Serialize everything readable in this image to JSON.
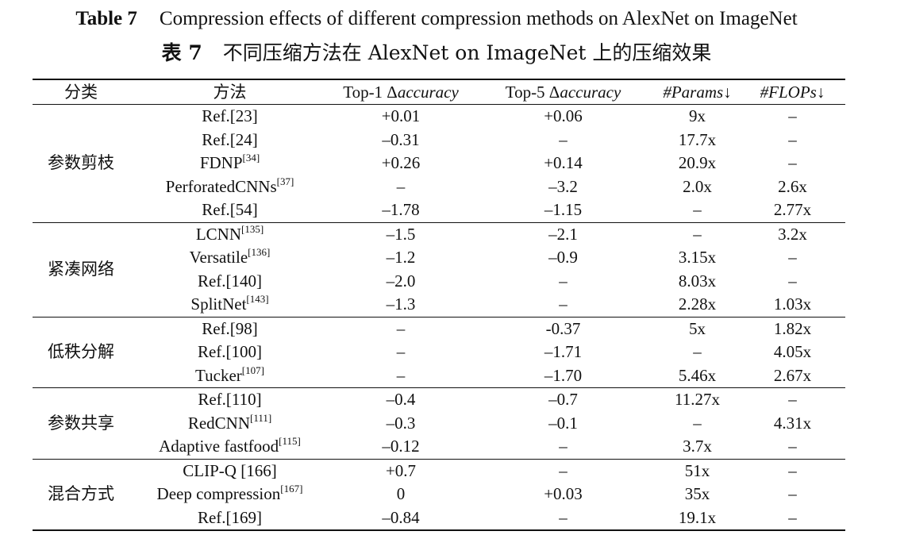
{
  "caption": {
    "en_label": "Table 7",
    "en_text": "Compression effects of different compression methods on AlexNet on ImageNet",
    "zh_label": "表 7",
    "zh_text": "不同压缩方法在 AlexNet on ImageNet 上的压缩效果"
  },
  "header": {
    "category": "分类",
    "method": "方法",
    "top1_prefix": "Top-1 Δ",
    "top1_italic": "accuracy",
    "top5_prefix": "Top-5 Δ",
    "top5_italic": "accuracy",
    "params_italic": "#Params",
    "params_arrow": "↓",
    "flops_italic": "#FLOPs",
    "flops_arrow": "↓"
  },
  "groups": [
    {
      "category": "参数剪枝",
      "rows": [
        {
          "method": "Ref.[23]",
          "ref": "",
          "top1": "+0.01",
          "top5": "+0.06",
          "params": "9x",
          "flops": "–"
        },
        {
          "method": "Ref.[24]",
          "ref": "",
          "top1": "–0.31",
          "top5": "–",
          "params": "17.7x",
          "flops": "–"
        },
        {
          "method": "FDNP",
          "ref": "[34]",
          "top1": "+0.26",
          "top5": "+0.14",
          "params": "20.9x",
          "flops": "–"
        },
        {
          "method": "PerforatedCNNs",
          "ref": "[37]",
          "top1": "–",
          "top5": "–3.2",
          "params": "2.0x",
          "flops": "2.6x"
        },
        {
          "method": "Ref.[54]",
          "ref": "",
          "top1": "–1.78",
          "top5": "–1.15",
          "params": "–",
          "flops": "2.77x"
        }
      ]
    },
    {
      "category": "紧凑网络",
      "rows": [
        {
          "method": "LCNN",
          "ref": "[135]",
          "top1": "–1.5",
          "top5": "–2.1",
          "params": "–",
          "flops": "3.2x"
        },
        {
          "method": "Versatile",
          "ref": "[136]",
          "top1": "–1.2",
          "top5": "–0.9",
          "params": "3.15x",
          "flops": "–"
        },
        {
          "method": "Ref.[140]",
          "ref": "",
          "top1": "–2.0",
          "top5": "–",
          "params": "8.03x",
          "flops": "–"
        },
        {
          "method": "SplitNet",
          "ref": "[143]",
          "top1": "–1.3",
          "top5": "–",
          "params": "2.28x",
          "flops": "1.03x"
        }
      ]
    },
    {
      "category": "低秩分解",
      "rows": [
        {
          "method": "Ref.[98]",
          "ref": "",
          "top1": "–",
          "top5": "-0.37",
          "params": "5x",
          "flops": "1.82x"
        },
        {
          "method": "Ref.[100]",
          "ref": "",
          "top1": "–",
          "top5": "–1.71",
          "params": "–",
          "flops": "4.05x"
        },
        {
          "method": "Tucker",
          "ref": "[107]",
          "top1": "–",
          "top5": "–1.70",
          "params": "5.46x",
          "flops": "2.67x"
        }
      ]
    },
    {
      "category": "参数共享",
      "rows": [
        {
          "method": "Ref.[110]",
          "ref": "",
          "top1": "–0.4",
          "top5": "–0.7",
          "params": "11.27x",
          "flops": "–"
        },
        {
          "method": "RedCNN",
          "ref": "[111]",
          "top1": "–0.3",
          "top5": "–0.1",
          "params": "–",
          "flops": "4.31x"
        },
        {
          "method": "Adaptive fastfood",
          "ref": "[115]",
          "top1": "–0.12",
          "top5": "–",
          "params": "3.7x",
          "flops": "–"
        }
      ]
    },
    {
      "category": "混合方式",
      "rows": [
        {
          "method": "CLIP-Q [166]",
          "ref": "",
          "top1": "+0.7",
          "top5": "–",
          "params": "51x",
          "flops": "–"
        },
        {
          "method": "Deep compression",
          "ref": "[167]",
          "top1": "0",
          "top5": "+0.03",
          "params": "35x",
          "flops": "–"
        },
        {
          "method": "Ref.[169]",
          "ref": "",
          "top1": "–0.84",
          "top5": "–",
          "params": "19.1x",
          "flops": "–"
        }
      ]
    }
  ]
}
